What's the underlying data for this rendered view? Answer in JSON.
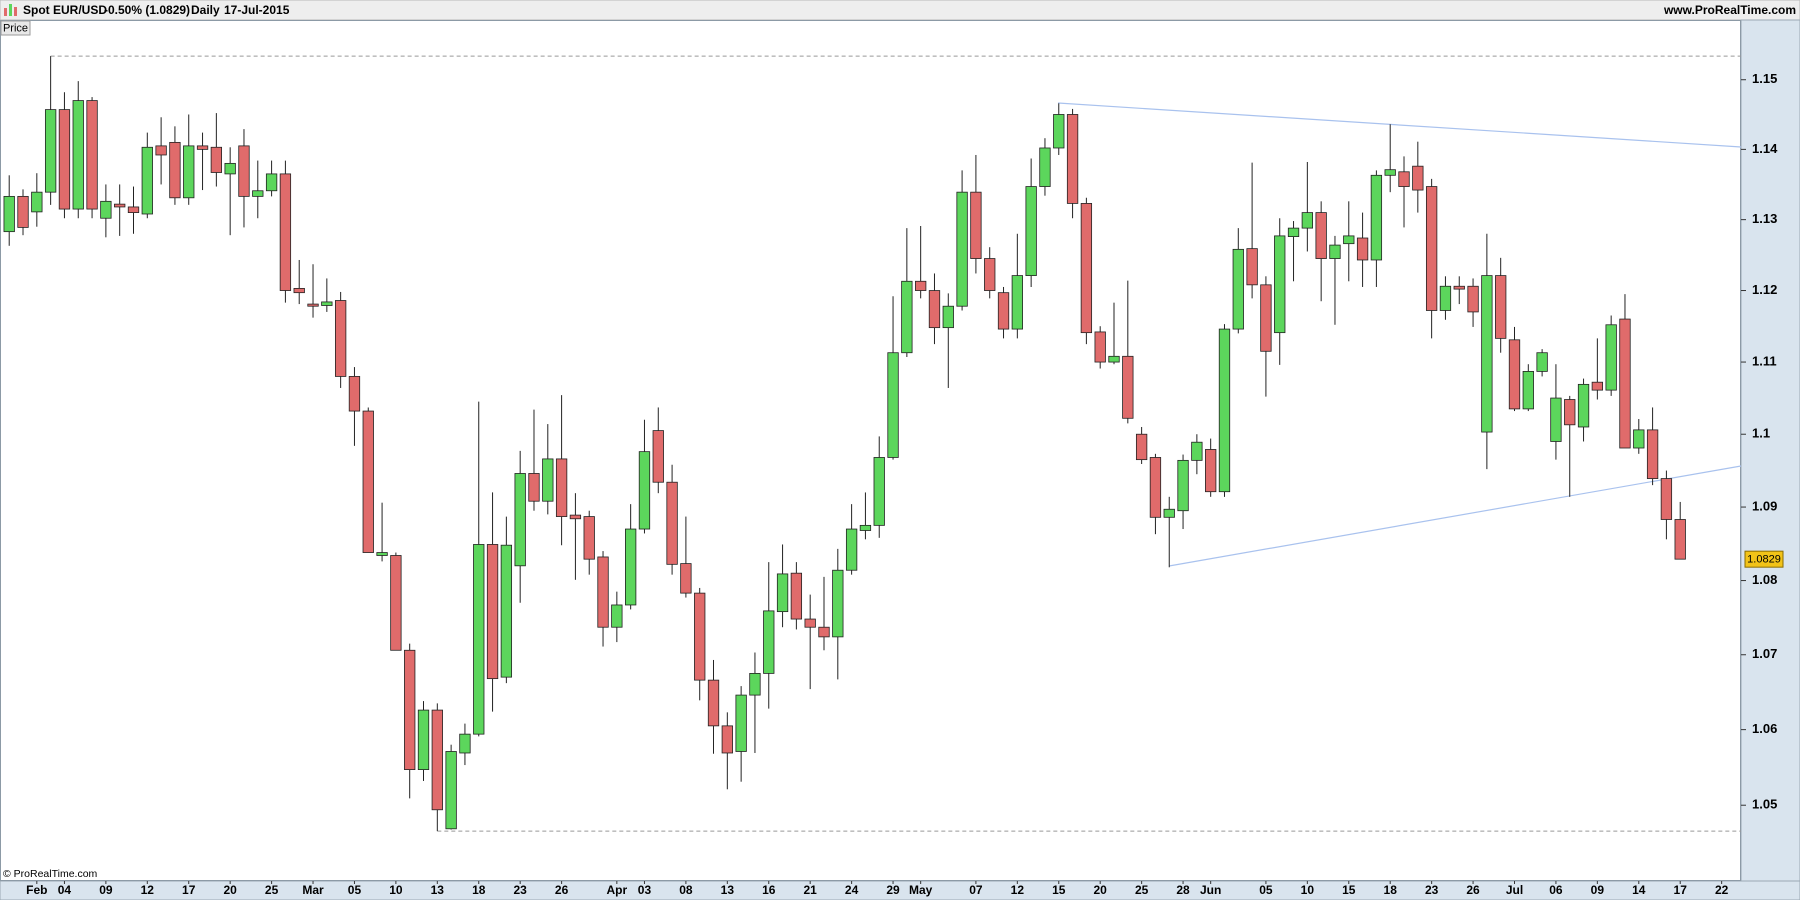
{
  "chart_data": {
    "type": "candlestick",
    "instrument": "Spot EUR/USD",
    "change": "-0.50% (1.0829)",
    "period": "Daily",
    "date": "17-Jul-2015",
    "website": "www.ProRealTime.com",
    "panel_label": "Price",
    "copyright": "© ProRealTime.com",
    "log_scale": true,
    "grid": false,
    "up_color": "#5cd65c",
    "down_color": "#e06b6b",
    "ylim": [
      1.0402,
      1.1585
    ],
    "yticks": [
      1.05,
      1.06,
      1.07,
      1.08,
      1.09,
      1.1,
      1.11,
      1.12,
      1.13,
      1.14,
      1.15
    ],
    "categories": [
      null,
      null,
      "Feb",
      null,
      "04",
      null,
      null,
      "09",
      null,
      null,
      "12",
      null,
      null,
      "17",
      null,
      null,
      "20",
      null,
      null,
      "25",
      null,
      null,
      "Mar",
      null,
      null,
      "05",
      null,
      null,
      "10",
      null,
      null,
      "13",
      null,
      null,
      "18",
      null,
      null,
      "23",
      null,
      null,
      "26",
      null,
      null,
      null,
      "Apr",
      null,
      "03",
      null,
      null,
      "08",
      null,
      null,
      "13",
      null,
      null,
      "16",
      null,
      null,
      "21",
      null,
      null,
      "24",
      null,
      null,
      "29",
      null,
      "May",
      null,
      null,
      null,
      "07",
      null,
      null,
      "12",
      null,
      null,
      "15",
      null,
      null,
      "20",
      null,
      null,
      "25",
      null,
      null,
      "28",
      null,
      "Jun",
      null,
      null,
      null,
      "05",
      null,
      null,
      "10",
      null,
      null,
      "15",
      null,
      null,
      "18",
      null,
      null,
      "23",
      null,
      null,
      "26",
      null,
      null,
      "Jul",
      null,
      null,
      "06",
      null,
      null,
      "09",
      null,
      null,
      "14",
      null,
      null,
      "17",
      null,
      null,
      "22"
    ],
    "open": [
      1.1283,
      1.1333,
      1.1311,
      1.1339,
      1.1457,
      1.1315,
      1.147,
      1.1302,
      1.1322,
      1.1318,
      1.1308,
      1.1405,
      1.141,
      1.1331,
      1.1405,
      1.1403,
      1.1365,
      1.1405,
      1.1333,
      1.1341,
      1.1365,
      1.1203,
      1.1181,
      1.1179,
      1.1186,
      1.108,
      1.1032,
      1.0834,
      1.0834,
      1.0706,
      1.0547,
      1.0626,
      1.0469,
      1.0569,
      1.0594,
      1.0849,
      1.067,
      1.082,
      1.0946,
      1.0908,
      1.0966,
      1.0889,
      1.0887,
      1.0832,
      1.0737,
      1.0767,
      1.087,
      1.1005,
      1.0934,
      1.0823,
      1.0783,
      1.0666,
      1.0605,
      1.0571,
      1.0646,
      1.0675,
      1.0758,
      1.081,
      1.0748,
      1.0737,
      1.0724,
      1.0814,
      1.0868,
      1.0875,
      1.0968,
      1.1113,
      1.1213,
      1.12,
      1.1148,
      1.1178,
      1.1339,
      1.1245,
      1.1197,
      1.1146,
      1.1221,
      1.1347,
      1.1402,
      1.145,
      1.1323,
      1.1142,
      1.11,
      1.1108,
      1.1,
      1.0968,
      1.0886,
      1.0895,
      1.0964,
      1.0979,
      1.0921,
      1.1146,
      1.1259,
      1.1208,
      1.1141,
      1.1276,
      1.1288,
      1.131,
      1.1245,
      1.1266,
      1.1274,
      1.1243,
      1.1363,
      1.1368,
      1.1376,
      1.1347,
      1.1172,
      1.1206,
      1.1206,
      1.1003,
      1.1221,
      1.1131,
      1.1035,
      1.1087,
      1.099,
      1.1048,
      1.101,
      1.1072,
      1.1061,
      1.116,
      1.0981,
      1.1006,
      1.0939,
      1.0883,
      null,
      null,
      null
    ],
    "high": [
      1.1363,
      1.1343,
      1.1366,
      1.1534,
      1.1482,
      1.1498,
      1.1475,
      1.135,
      1.135,
      1.1347,
      1.1424,
      1.1446,
      1.1433,
      1.145,
      1.1424,
      1.1452,
      1.1403,
      1.1429,
      1.1384,
      1.1384,
      1.1384,
      1.1243,
      1.1237,
      1.1217,
      1.1198,
      1.1093,
      1.1037,
      1.0906,
      1.0838,
      1.0715,
      1.0638,
      1.0635,
      1.058,
      1.0608,
      1.1045,
      1.092,
      1.0887,
      1.0977,
      1.1034,
      1.1014,
      1.1054,
      1.0919,
      1.0895,
      1.084,
      1.0785,
      1.0904,
      1.102,
      1.1037,
      1.0958,
      1.0887,
      1.079,
      1.0693,
      1.0623,
      1.0658,
      1.0703,
      1.0825,
      1.0849,
      1.0825,
      1.0781,
      1.0805,
      1.0843,
      1.0904,
      1.092,
      1.0997,
      1.1192,
      1.1288,
      1.1291,
      1.1224,
      1.1196,
      1.137,
      1.1392,
      1.1261,
      1.1205,
      1.128,
      1.1387,
      1.1416,
      1.1466,
      1.1458,
      1.1331,
      1.115,
      1.1183,
      1.1214,
      1.101,
      1.0973,
      1.0914,
      1.0972,
      1.1,
      1.0994,
      1.1153,
      1.1288,
      1.1381,
      1.122,
      1.1302,
      1.1298,
      1.1382,
      1.1326,
      1.1277,
      1.1326,
      1.131,
      1.137,
      1.1436,
      1.139,
      1.1411,
      1.1358,
      1.122,
      1.122,
      1.1217,
      1.128,
      1.1246,
      1.1149,
      1.1097,
      1.1118,
      1.1097,
      1.1053,
      1.1077,
      1.1133,
      1.1165,
      1.1195,
      1.1021,
      1.1037,
      1.095,
      1.0907,
      null,
      null,
      null
    ],
    "low": [
      1.1263,
      1.1278,
      1.129,
      1.1321,
      1.1302,
      1.1302,
      1.1302,
      1.1275,
      1.1277,
      1.128,
      1.1302,
      1.135,
      1.1321,
      1.1321,
      1.1342,
      1.1347,
      1.1278,
      1.1289,
      1.1302,
      1.1333,
      1.1183,
      1.1181,
      1.1162,
      1.117,
      1.1064,
      1.0984,
      1.0838,
      1.0826,
      1.0706,
      1.0509,
      1.0532,
      1.0466,
      1.0468,
      1.0553,
      1.0591,
      1.0624,
      1.0662,
      1.077,
      1.0895,
      1.089,
      1.0848,
      1.0801,
      1.0808,
      1.0711,
      1.0717,
      1.0761,
      1.0864,
      1.0919,
      1.0808,
      1.0777,
      1.0639,
      1.0568,
      1.0521,
      1.0531,
      1.0569,
      1.0628,
      1.0737,
      1.0734,
      1.0654,
      1.0706,
      1.0667,
      1.0808,
      1.0856,
      1.0858,
      1.0965,
      1.1107,
      1.1189,
      1.1125,
      1.1064,
      1.1172,
      1.1224,
      1.1189,
      1.1133,
      1.1133,
      1.1205,
      1.1334,
      1.1392,
      1.1302,
      1.1125,
      1.1091,
      1.1097,
      1.1015,
      1.0959,
      1.0863,
      1.0818,
      1.087,
      1.0945,
      1.0914,
      1.0914,
      1.114,
      1.1189,
      1.1052,
      1.1096,
      1.1213,
      1.1255,
      1.1185,
      1.1152,
      1.1213,
      1.1205,
      1.1205,
      1.1339,
      1.1289,
      1.131,
      1.1133,
      1.1159,
      1.1181,
      1.1149,
      1.0952,
      1.1113,
      1.1032,
      1.1032,
      1.108,
      1.0965,
      1.0914,
      1.099,
      1.1048,
      1.1053,
      1.0981,
      1.0973,
      1.093,
      1.0856,
      1.0829,
      null,
      null,
      null
    ],
    "close": [
      1.1333,
      1.1289,
      1.1339,
      1.1457,
      1.1315,
      1.147,
      1.1315,
      1.1326,
      1.1318,
      1.131,
      1.1403,
      1.1392,
      1.1331,
      1.1405,
      1.14,
      1.1367,
      1.138,
      1.1333,
      1.1341,
      1.1365,
      1.12,
      1.1197,
      1.1178,
      1.1184,
      1.108,
      1.1032,
      1.0838,
      1.0838,
      1.0706,
      1.0547,
      1.0626,
      1.0494,
      1.0571,
      1.0594,
      1.0849,
      1.0668,
      1.0848,
      1.0946,
      1.0908,
      1.0966,
      1.0887,
      1.0884,
      1.0829,
      1.0737,
      1.0767,
      1.087,
      1.0976,
      1.0934,
      1.0822,
      1.0783,
      1.0666,
      1.0605,
      1.0569,
      1.0646,
      1.0675,
      1.0759,
      1.0809,
      1.0748,
      1.0737,
      1.0724,
      1.0814,
      1.087,
      1.0875,
      1.0968,
      1.1113,
      1.1213,
      1.12,
      1.1148,
      1.1178,
      1.1339,
      1.1245,
      1.12,
      1.1146,
      1.1221,
      1.1347,
      1.1402,
      1.145,
      1.1323,
      1.1141,
      1.11,
      1.1108,
      1.1022,
      1.0965,
      1.0886,
      1.0897,
      1.0964,
      1.0989,
      1.0921,
      1.1146,
      1.1258,
      1.1208,
      1.1115,
      1.1277,
      1.1288,
      1.131,
      1.1245,
      1.1264,
      1.1277,
      1.1243,
      1.1363,
      1.1371,
      1.1347,
      1.1342,
      1.1172,
      1.1206,
      1.1202,
      1.117,
      1.1221,
      1.1133,
      1.1035,
      1.1087,
      1.1113,
      1.105,
      1.1013,
      1.1069,
      1.1061,
      1.1152,
      1.0981,
      1.1006,
      1.0939,
      1.0883,
      1.0829,
      null,
      null,
      null
    ]
  }
}
